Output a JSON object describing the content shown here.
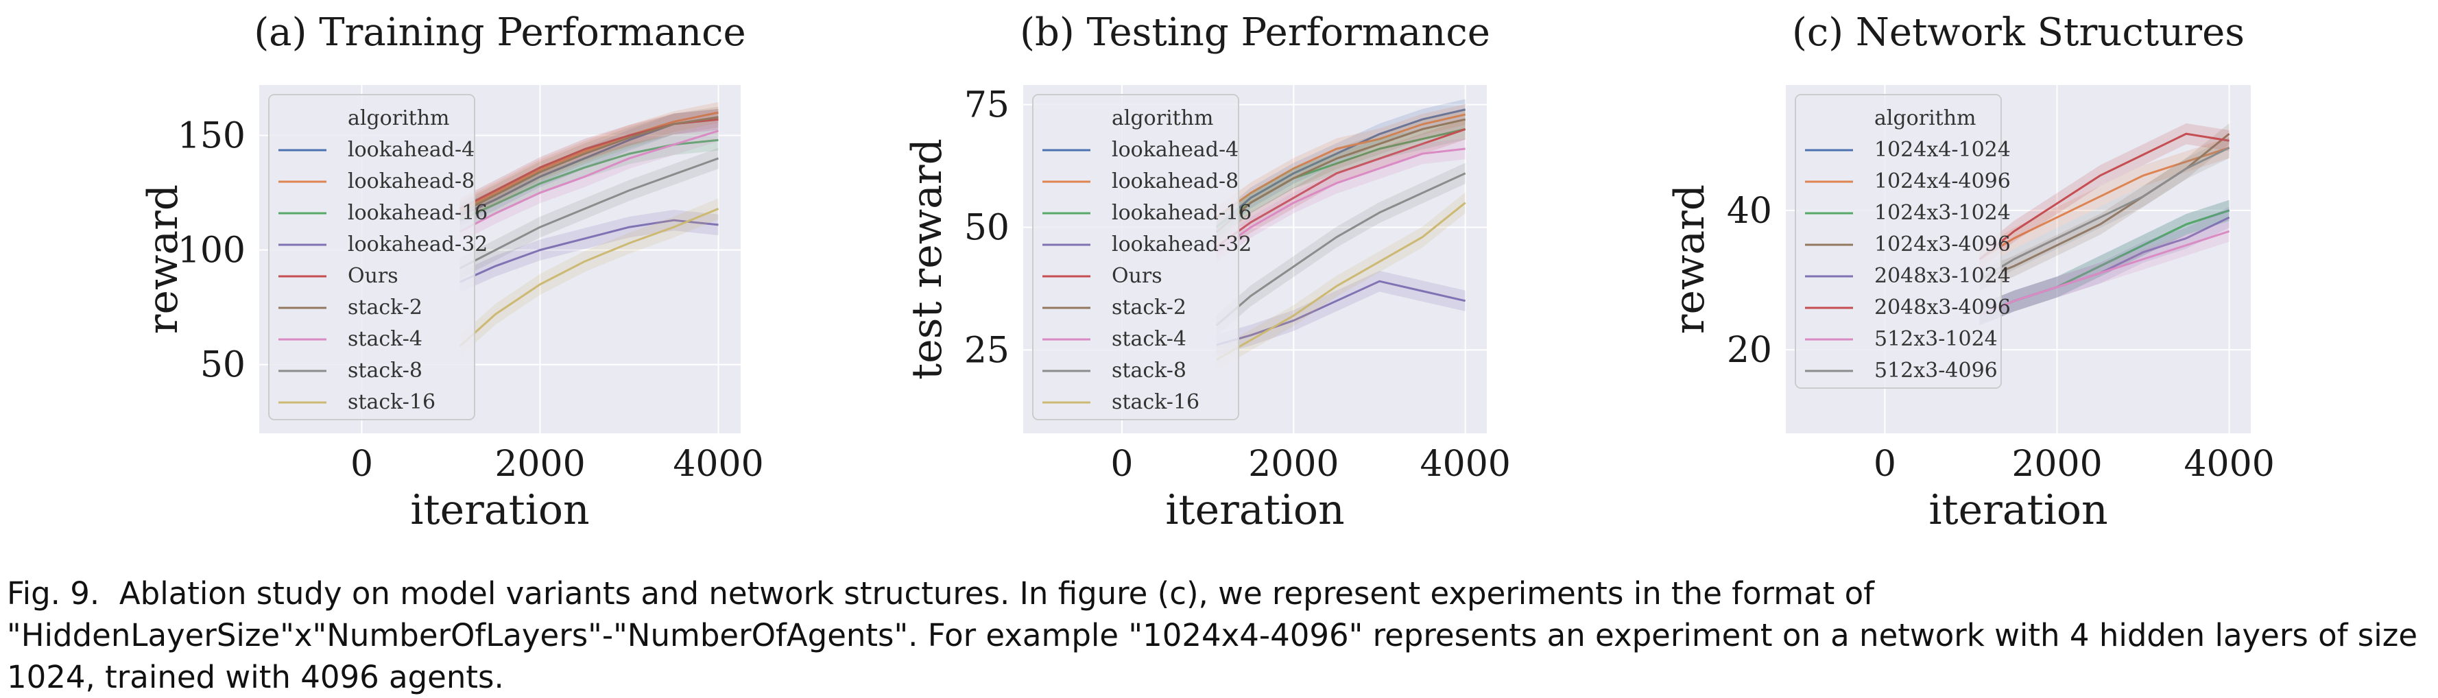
{
  "chart_data": [
    {
      "type": "line",
      "title": "(a) Training Performance",
      "xlabel": "iteration",
      "ylabel": "reward",
      "xlim": [
        -1150,
        4250
      ],
      "ylim": [
        20,
        172
      ],
      "xticks": [
        0,
        2000,
        4000
      ],
      "xtick_labels": [
        "0",
        "2000",
        "4000"
      ],
      "yticks": [
        50,
        100,
        150
      ],
      "ytick_labels": [
        "50",
        "100",
        "150"
      ],
      "grid": true,
      "legend": {
        "title": "algorithm",
        "position": "upper-left"
      },
      "series": [
        {
          "name": "lookahead-4",
          "color": "#4c72b0",
          "x": [
            1100,
            1500,
            2000,
            2500,
            3000,
            3500,
            4000
          ],
          "y": [
            115,
            122,
            132,
            140,
            148,
            155,
            157
          ]
        },
        {
          "name": "lookahead-8",
          "color": "#dd8452",
          "x": [
            1100,
            1500,
            2000,
            2500,
            3000,
            3500,
            4000
          ],
          "y": [
            117,
            125,
            135,
            143,
            150,
            156,
            160
          ]
        },
        {
          "name": "lookahead-16",
          "color": "#55a868",
          "x": [
            1100,
            1500,
            2000,
            2500,
            3000,
            3500,
            4000
          ],
          "y": [
            113,
            120,
            129,
            136,
            142,
            146,
            148
          ]
        },
        {
          "name": "lookahead-32",
          "color": "#8172b3",
          "x": [
            1100,
            1500,
            2000,
            2500,
            3000,
            3500,
            4000
          ],
          "y": [
            86,
            93,
            100,
            105,
            110,
            113,
            111
          ]
        },
        {
          "name": "Ours",
          "color": "#c44e52",
          "x": [
            1100,
            1500,
            2000,
            2500,
            3000,
            3500,
            4000
          ],
          "y": [
            118,
            126,
            136,
            144,
            150,
            155,
            157
          ]
        },
        {
          "name": "stack-2",
          "color": "#937860",
          "x": [
            1100,
            1500,
            2000,
            2500,
            3000,
            3500,
            4000
          ],
          "y": [
            116,
            124,
            134,
            142,
            149,
            155,
            158
          ]
        },
        {
          "name": "stack-4",
          "color": "#da8bc3",
          "x": [
            1100,
            1500,
            2000,
            2500,
            3000,
            3500,
            4000
          ],
          "y": [
            108,
            116,
            125,
            132,
            140,
            146,
            152
          ]
        },
        {
          "name": "stack-8",
          "color": "#8c8c8c",
          "x": [
            1100,
            1500,
            2000,
            2500,
            3000,
            3500,
            4000
          ],
          "y": [
            92,
            100,
            110,
            118,
            126,
            133,
            140
          ]
        },
        {
          "name": "stack-16",
          "color": "#ccb974",
          "x": [
            1100,
            1500,
            2000,
            2500,
            3000,
            3500,
            4000
          ],
          "y": [
            58,
            72,
            85,
            95,
            103,
            110,
            118
          ]
        }
      ]
    },
    {
      "type": "line",
      "title": "(b) Testing Performance",
      "xlabel": "iteration",
      "ylabel": "test reward",
      "xlim": [
        -1150,
        4250
      ],
      "ylim": [
        8,
        79
      ],
      "xticks": [
        0,
        2000,
        4000
      ],
      "xtick_labels": [
        "0",
        "2000",
        "4000"
      ],
      "yticks": [
        25,
        50,
        75
      ],
      "ytick_labels": [
        "25",
        "50",
        "75"
      ],
      "grid": true,
      "legend": {
        "title": "algorithm",
        "position": "upper-left"
      },
      "series": [
        {
          "name": "lookahead-4",
          "color": "#4c72b0",
          "x": [
            1100,
            1500,
            2000,
            2500,
            3000,
            3500,
            4000
          ],
          "y": [
            50,
            56,
            61,
            65,
            69,
            72,
            74
          ]
        },
        {
          "name": "lookahead-8",
          "color": "#dd8452",
          "x": [
            1100,
            1500,
            2000,
            2500,
            3000,
            3500,
            4000
          ],
          "y": [
            52,
            57,
            62,
            66,
            68,
            71,
            73
          ]
        },
        {
          "name": "lookahead-16",
          "color": "#55a868",
          "x": [
            1100,
            1500,
            2000,
            2500,
            3000,
            3500,
            4000
          ],
          "y": [
            50,
            55,
            60,
            63,
            66,
            68,
            70
          ]
        },
        {
          "name": "lookahead-32",
          "color": "#8172b3",
          "x": [
            1100,
            1500,
            2000,
            2500,
            3000,
            3500,
            4000
          ],
          "y": [
            26,
            28,
            31,
            35,
            39,
            37,
            35
          ]
        },
        {
          "name": "Ours",
          "color": "#c44e52",
          "x": [
            1100,
            1500,
            2000,
            2500,
            3000,
            3500,
            4000
          ],
          "y": [
            46,
            51,
            56,
            61,
            64,
            67,
            70
          ]
        },
        {
          "name": "stack-2",
          "color": "#937860",
          "x": [
            1100,
            1500,
            2000,
            2500,
            3000,
            3500,
            4000
          ],
          "y": [
            49,
            55,
            60,
            64,
            67,
            70,
            72
          ]
        },
        {
          "name": "stack-4",
          "color": "#da8bc3",
          "x": [
            1100,
            1500,
            2000,
            2500,
            3000,
            3500,
            4000
          ],
          "y": [
            45,
            50,
            55,
            59,
            62,
            65,
            66
          ]
        },
        {
          "name": "stack-8",
          "color": "#8c8c8c",
          "x": [
            1100,
            1500,
            2000,
            2500,
            3000,
            3500,
            4000
          ],
          "y": [
            30,
            36,
            42,
            48,
            53,
            57,
            61
          ]
        },
        {
          "name": "stack-16",
          "color": "#ccb974",
          "x": [
            1100,
            1500,
            2000,
            2500,
            3000,
            3500,
            4000
          ],
          "y": [
            23,
            27,
            32,
            38,
            43,
            48,
            55
          ]
        }
      ]
    },
    {
      "type": "line",
      "title": "(c) Network Structures",
      "xlabel": "iteration",
      "ylabel": "reward",
      "xlim": [
        -1150,
        4250
      ],
      "ylim": [
        8,
        58
      ],
      "xticks": [
        0,
        2000,
        4000
      ],
      "xtick_labels": [
        "0",
        "2000",
        "4000"
      ],
      "yticks": [
        20,
        40
      ],
      "ytick_labels": [
        "20",
        "40"
      ],
      "grid": true,
      "legend": {
        "title": "algorithm",
        "position": "upper-left"
      },
      "series": [
        {
          "name": "1024x4-1024",
          "color": "#4c72b0",
          "x": [
            1100,
            1500,
            2000,
            2500,
            3000,
            3500,
            4000
          ],
          "y": [
            25,
            27,
            29,
            32,
            35,
            38,
            40
          ]
        },
        {
          "name": "1024x4-4096",
          "color": "#dd8452",
          "x": [
            1100,
            1500,
            2000,
            2500,
            3000,
            3500,
            4000
          ],
          "y": [
            33,
            36,
            39,
            42,
            45,
            47,
            49
          ]
        },
        {
          "name": "1024x3-1024",
          "color": "#55a868",
          "x": [
            1100,
            1500,
            2000,
            2500,
            3000,
            3500,
            4000
          ],
          "y": [
            25,
            27,
            29,
            32,
            35,
            38,
            40
          ]
        },
        {
          "name": "1024x3-4096",
          "color": "#937860",
          "x": [
            1100,
            1500,
            2000,
            2500,
            3000,
            3500,
            4000
          ],
          "y": [
            30,
            32,
            35,
            38,
            42,
            46,
            51
          ]
        },
        {
          "name": "2048x3-1024",
          "color": "#8172b3",
          "x": [
            1100,
            1500,
            2000,
            2500,
            3000,
            3500,
            4000
          ],
          "y": [
            25,
            27,
            29,
            31,
            34,
            36,
            39
          ]
        },
        {
          "name": "2048x3-4096",
          "color": "#c44e52",
          "x": [
            1100,
            1500,
            2000,
            2500,
            3000,
            3500,
            4000
          ],
          "y": [
            33,
            37,
            41,
            45,
            48,
            51,
            50
          ]
        },
        {
          "name": "512x3-1024",
          "color": "#da8bc3",
          "x": [
            1100,
            1500,
            2000,
            2500,
            3000,
            3500,
            4000
          ],
          "y": [
            25,
            27,
            29,
            31,
            33,
            35,
            37
          ]
        },
        {
          "name": "512x3-4096",
          "color": "#8c8c8c",
          "x": [
            1100,
            1500,
            2000,
            2500,
            3000,
            3500,
            4000
          ],
          "y": [
            30,
            33,
            36,
            39,
            42,
            46,
            49
          ]
        }
      ]
    }
  ],
  "caption": {
    "label": "Fig. 9.",
    "text": "Ablation study on model variants and network structures. In figure (c), we represent experiments in the format of \"HiddenLayerSize\"x\"NumberOfLayers\"-\"NumberOfAgents\". For example \"1024x4-4096\" represents an experiment on a network with 4 hidden layers of size 1024, trained with 4096 agents."
  },
  "style": {
    "axes_background": "#eaeaf2",
    "grid_color": "#ffffff",
    "legend_background": "#eaeaf2",
    "legend_border": "#cccccc"
  }
}
